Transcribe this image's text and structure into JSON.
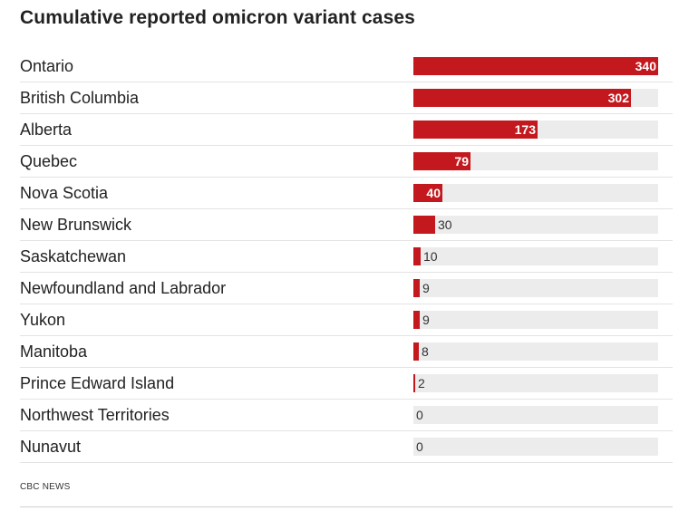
{
  "title": "Cumulative reported omicron variant cases",
  "source": "CBC NEWS",
  "colors": {
    "bar": "#c3191e",
    "track": "#ececec"
  },
  "chart_data": {
    "type": "bar",
    "orientation": "horizontal",
    "title": "Cumulative reported omicron variant cases",
    "xlabel": "",
    "ylabel": "",
    "xlim": [
      0,
      340
    ],
    "categories": [
      "Ontario",
      "British Columbia",
      "Alberta",
      "Quebec",
      "Nova Scotia",
      "New Brunswick",
      "Saskatchewan",
      "Newfoundland and Labrador",
      "Yukon",
      "Manitoba",
      "Prince Edward Island",
      "Northwest Territories",
      "Nunavut"
    ],
    "values": [
      340,
      302,
      173,
      79,
      40,
      30,
      10,
      9,
      9,
      8,
      2,
      0,
      0
    ],
    "data_labels": [
      "340",
      "302",
      "173",
      "79",
      "40",
      "30",
      "10",
      "9",
      "9",
      "8",
      "2",
      "0",
      "0"
    ],
    "grid": false,
    "legend": "none"
  }
}
